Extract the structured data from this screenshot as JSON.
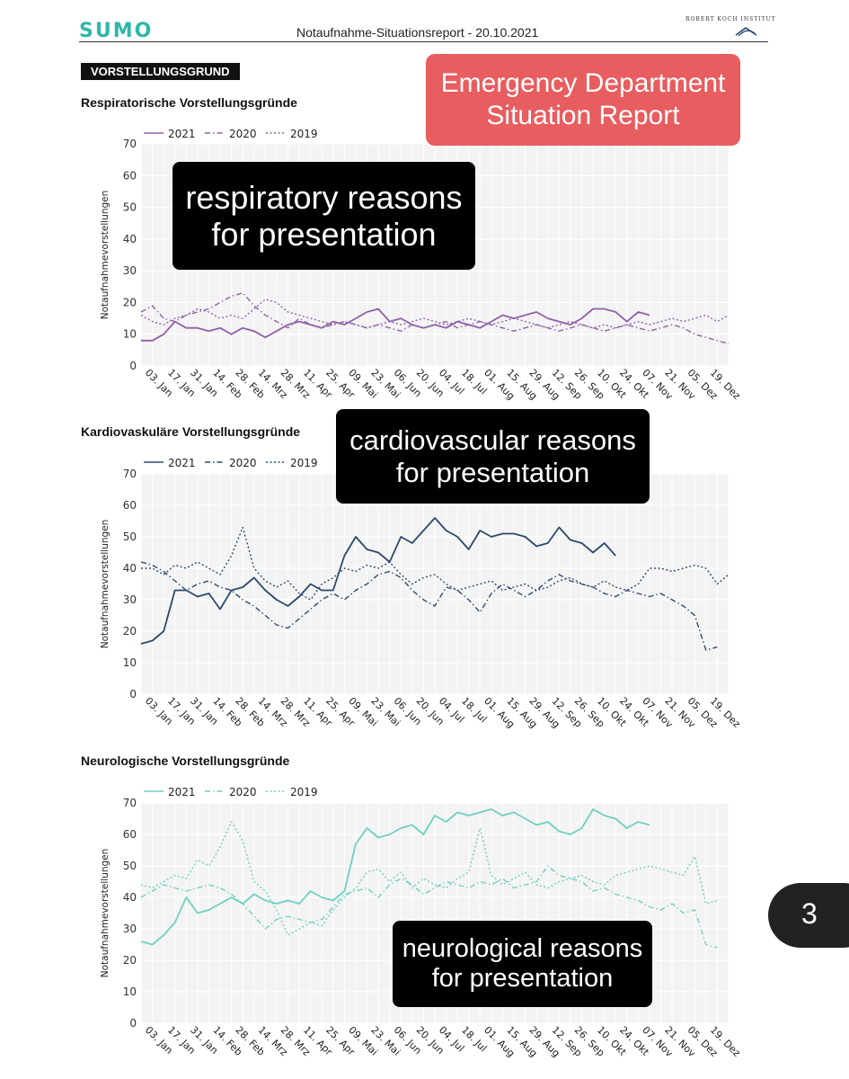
{
  "header": {
    "logo": "SUMO",
    "title": "Notaufnahme-Situationsreport - 20.10.2021",
    "institute": "ROBERT KOCH INSTITUT"
  },
  "section_tag": "VORSTELLUNGSGRUND",
  "banner": "Emergency Department Situation Report",
  "callouts": {
    "respiratory": "respiratory reasons for presentation",
    "cardiovascular": "cardiovascular reasons for presentation",
    "neurological": "neurological reasons for presentation"
  },
  "page_number": "3",
  "chart_data": [
    {
      "type": "line",
      "title": "Respiratorische Vorstellungsgründe",
      "ylabel": "Notaufnahmevorstellungen",
      "ylim": [
        0,
        70
      ],
      "yticks": [
        0,
        10,
        20,
        30,
        40,
        50,
        60,
        70
      ],
      "xlim": [
        0,
        52
      ],
      "xticks": [
        "03. Jan",
        "17. Jan",
        "31. Jan",
        "14. Feb",
        "28. Feb",
        "14. Mrz",
        "28. Mrz",
        "11. Apr",
        "25. Apr",
        "09. Mai",
        "23. Mai",
        "06. Jun",
        "20. Jun",
        "04. Jul",
        "18. Jul",
        "01. Aug",
        "15. Aug",
        "29. Aug",
        "12. Sep",
        "26. Sep",
        "10. Okt",
        "24. Okt",
        "07. Nov",
        "21. Nov",
        "05. Dez",
        "19. Dez"
      ],
      "grid": true,
      "legend_position": "top-left",
      "color": "#8f62a8",
      "series": [
        {
          "name": "2021",
          "style": "solid",
          "values": [
            8,
            8,
            10,
            14,
            12,
            12,
            11,
            12,
            10,
            12,
            11,
            9,
            11,
            13,
            14,
            13,
            12,
            14,
            13,
            15,
            17,
            18,
            14,
            15,
            13,
            12,
            13,
            12,
            14,
            13,
            12,
            14,
            16,
            15,
            16,
            17,
            15,
            14,
            13,
            15,
            18,
            18,
            17,
            14,
            17,
            16
          ]
        },
        {
          "name": "2020",
          "style": "dashdot",
          "values": [
            17,
            19,
            15,
            14,
            16,
            17,
            18,
            20,
            22,
            23,
            19,
            16,
            14,
            12,
            15,
            13,
            12,
            13,
            14,
            13,
            12,
            13,
            12,
            11,
            13,
            12,
            13,
            14,
            12,
            13,
            14,
            13,
            12,
            11,
            12,
            13,
            12,
            11,
            12,
            13,
            12,
            11,
            12,
            13,
            12,
            11,
            12,
            13,
            12,
            10,
            9,
            8,
            7
          ]
        },
        {
          "name": "2019",
          "style": "dotted",
          "values": [
            16,
            14,
            13,
            15,
            16,
            18,
            17,
            15,
            16,
            15,
            18,
            21,
            20,
            17,
            16,
            15,
            14,
            13,
            14,
            13,
            12,
            13,
            14,
            13,
            14,
            15,
            14,
            13,
            14,
            15,
            14,
            13,
            14,
            15,
            14,
            13,
            12,
            13,
            14,
            13,
            12,
            13,
            12,
            13,
            14,
            13,
            14,
            15,
            14,
            15,
            16,
            14,
            16
          ]
        }
      ]
    },
    {
      "type": "line",
      "title": "Kardiovaskuläre Vorstellungsgründe",
      "ylabel": "Notaufnahmevorstellungen",
      "ylim": [
        0,
        70
      ],
      "yticks": [
        0,
        10,
        20,
        30,
        40,
        50,
        60,
        70
      ],
      "xlim": [
        0,
        52
      ],
      "xticks": [
        "03. Jan",
        "17. Jan",
        "31. Jan",
        "14. Feb",
        "28. Feb",
        "14. Mrz",
        "28. Mrz",
        "11. Apr",
        "25. Apr",
        "09. Mai",
        "23. Mai",
        "06. Jun",
        "20. Jun",
        "04. Jul",
        "18. Jul",
        "01. Aug",
        "15. Aug",
        "29. Aug",
        "12. Sep",
        "26. Sep",
        "10. Okt",
        "24. Okt",
        "07. Nov",
        "21. Nov",
        "05. Dez",
        "19. Dez"
      ],
      "grid": true,
      "legend_position": "top-left",
      "color": "#2c4a6b",
      "series": [
        {
          "name": "2021",
          "style": "solid",
          "values": [
            16,
            17,
            20,
            33,
            33,
            31,
            32,
            27,
            33,
            34,
            37,
            33,
            30,
            28,
            31,
            35,
            33,
            33,
            44,
            50,
            46,
            45,
            42,
            50,
            48,
            52,
            56,
            52,
            50,
            46,
            52,
            50,
            51,
            51,
            50,
            47,
            48,
            53,
            49,
            48,
            45,
            48,
            44
          ]
        },
        {
          "name": "2020",
          "style": "dashdot",
          "values": [
            42,
            41,
            39,
            36,
            33,
            35,
            36,
            34,
            33,
            30,
            28,
            25,
            22,
            21,
            24,
            27,
            30,
            32,
            30,
            33,
            35,
            38,
            39,
            37,
            33,
            30,
            28,
            34,
            33,
            30,
            26,
            32,
            35,
            33,
            31,
            33,
            36,
            38,
            36,
            35,
            34,
            32,
            31,
            33,
            32,
            31,
            32,
            30,
            28,
            25,
            14,
            15
          ]
        },
        {
          "name": "2019",
          "style": "dotted",
          "values": [
            40,
            40,
            38,
            41,
            40,
            42,
            40,
            38,
            44,
            53,
            40,
            36,
            34,
            36,
            32,
            30,
            35,
            37,
            40,
            39,
            41,
            40,
            42,
            38,
            35,
            37,
            38,
            35,
            33,
            34,
            35,
            36,
            33,
            34,
            35,
            33,
            34,
            36,
            37,
            35,
            34,
            36,
            34,
            33,
            35,
            40,
            40,
            39,
            40,
            41,
            40,
            35,
            38
          ]
        }
      ]
    },
    {
      "type": "line",
      "title": "Neurologische Vorstellungsgründe",
      "ylabel": "Notaufnahmevorstellungen",
      "ylim": [
        0,
        70
      ],
      "yticks": [
        0,
        10,
        20,
        30,
        40,
        50,
        60,
        70
      ],
      "xlim": [
        0,
        52
      ],
      "xticks": [
        "03. Jan",
        "17. Jan",
        "31. Jan",
        "14. Feb",
        "28. Feb",
        "14. Mrz",
        "28. Mrz",
        "11. Apr",
        "25. Apr",
        "09. Mai",
        "23. Mai",
        "06. Jun",
        "20. Jun",
        "04. Jul",
        "18. Jul",
        "01. Aug",
        "15. Aug",
        "29. Aug",
        "12. Sep",
        "26. Sep",
        "10. Okt",
        "24. Okt",
        "07. Nov",
        "21. Nov",
        "05. Dez",
        "19. Dez"
      ],
      "grid": true,
      "legend_position": "top-left",
      "color": "#6fd0c0",
      "series": [
        {
          "name": "2021",
          "style": "solid",
          "values": [
            26,
            25,
            28,
            32,
            40,
            35,
            36,
            38,
            40,
            38,
            41,
            39,
            38,
            39,
            38,
            42,
            40,
            39,
            42,
            57,
            62,
            59,
            60,
            62,
            63,
            60,
            66,
            64,
            67,
            66,
            67,
            68,
            66,
            67,
            65,
            63,
            64,
            61,
            60,
            62,
            68,
            66,
            65,
            62,
            64,
            63
          ]
        },
        {
          "name": "2020",
          "style": "dashdot",
          "values": [
            40,
            42,
            44,
            43,
            42,
            43,
            44,
            43,
            41,
            38,
            34,
            30,
            33,
            34,
            33,
            32,
            33,
            37,
            41,
            42,
            43,
            40,
            44,
            46,
            44,
            41,
            43,
            45,
            44,
            43,
            45,
            44,
            46,
            43,
            44,
            45,
            50,
            47,
            46,
            45,
            42,
            43,
            41,
            40,
            39,
            37,
            36,
            38,
            35,
            36,
            25,
            24
          ]
        },
        {
          "name": "2019",
          "style": "dotted",
          "values": [
            44,
            43,
            45,
            47,
            46,
            52,
            50,
            56,
            64,
            58,
            45,
            42,
            36,
            28,
            30,
            32,
            31,
            36,
            40,
            43,
            48,
            49,
            45,
            48,
            43,
            46,
            44,
            43,
            46,
            48,
            62,
            47,
            44,
            46,
            48,
            44,
            43,
            45,
            46,
            47,
            45,
            44,
            47,
            48,
            49,
            50,
            49,
            48,
            47,
            53,
            38,
            39
          ]
        }
      ]
    }
  ]
}
